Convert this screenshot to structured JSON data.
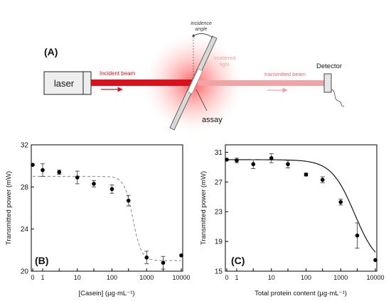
{
  "panelA": {
    "label": "(A)",
    "laser": "laser",
    "incident_beam": "Incident beam",
    "incidence_angle_line1": "incidence",
    "incidence_angle_line2": "angle",
    "scattered_line1": "scattered",
    "scattered_line2": "light",
    "transmitted_beam": "transmitted beam",
    "detector": "Detector",
    "assay": "assay",
    "colors": {
      "incident": "#d9111d",
      "transmitted": "#f4a3a5",
      "glow": "#ff2a2a",
      "assay_slab": "#d9d9d9"
    }
  },
  "chart_data": [
    {
      "type": "scatter",
      "panel_label": "(B)",
      "xlabel": "[Casein] (µg·mL⁻¹)",
      "ylabel": "Transmitted power (mW)",
      "xscale": "symlog",
      "xticks": [
        0,
        1,
        3,
        10,
        30,
        100,
        300,
        1000,
        3000,
        10000
      ],
      "xtick_labels": [
        "0",
        "1",
        "",
        "10",
        "",
        "100",
        "",
        "1000",
        "",
        "10000"
      ],
      "ylim": [
        20,
        32
      ],
      "yticks": [
        20,
        24,
        28,
        32
      ],
      "points": [
        {
          "x": 0,
          "y": 30.1,
          "err": 0
        },
        {
          "x": 1,
          "y": 29.6,
          "err": 0.6
        },
        {
          "x": 3,
          "y": 29.4,
          "err": 0.2
        },
        {
          "x": 10,
          "y": 28.9,
          "err": 0.6
        },
        {
          "x": 30,
          "y": 28.3,
          "err": 0.3
        },
        {
          "x": 100,
          "y": 27.8,
          "err": 0.4
        },
        {
          "x": 300,
          "y": 26.7,
          "err": 0.5
        },
        {
          "x": 1000,
          "y": 21.3,
          "err": 0.6
        },
        {
          "x": 3000,
          "y": 20.8,
          "err": 0.6
        },
        {
          "x": 10000,
          "y": 21.5,
          "err": 0
        }
      ],
      "fit": {
        "style": "dashed",
        "color": "#999999",
        "top": 29.0,
        "bottom": 21.0,
        "midpoint": 400,
        "slope": 3.5
      }
    },
    {
      "type": "scatter",
      "panel_label": "(C)",
      "xlabel": "Total protein content (µg·mL⁻¹)",
      "ylabel": "Transmitted power (mW)",
      "xscale": "symlog",
      "xticks": [
        0,
        1,
        3,
        10,
        30,
        100,
        300,
        1000,
        3000,
        10000
      ],
      "xtick_labels": [
        "0",
        "1",
        "",
        "10",
        "",
        "100",
        "",
        "1000",
        "",
        "10000"
      ],
      "ylim": [
        15,
        32
      ],
      "yticks": [
        15,
        19,
        23,
        27,
        31
      ],
      "points": [
        {
          "x": 0,
          "y": 30.0,
          "err": 0
        },
        {
          "x": 1,
          "y": 29.9,
          "err": 0.3
        },
        {
          "x": 3,
          "y": 29.4,
          "err": 0.6
        },
        {
          "x": 10,
          "y": 30.2,
          "err": 0.6
        },
        {
          "x": 30,
          "y": 29.4,
          "err": 0.5
        },
        {
          "x": 100,
          "y": 28.0,
          "err": 0.2
        },
        {
          "x": 300,
          "y": 27.3,
          "err": 0.4
        },
        {
          "x": 1000,
          "y": 24.3,
          "err": 0.4
        },
        {
          "x": 3000,
          "y": 19.8,
          "err": 1.7
        },
        {
          "x": 10000,
          "y": 16.5,
          "err": 0
        }
      ],
      "fit": {
        "style": "solid",
        "color": "#000000",
        "top": 30.0,
        "bottom": 15.5,
        "midpoint": 2500,
        "slope": 1.3
      }
    }
  ]
}
